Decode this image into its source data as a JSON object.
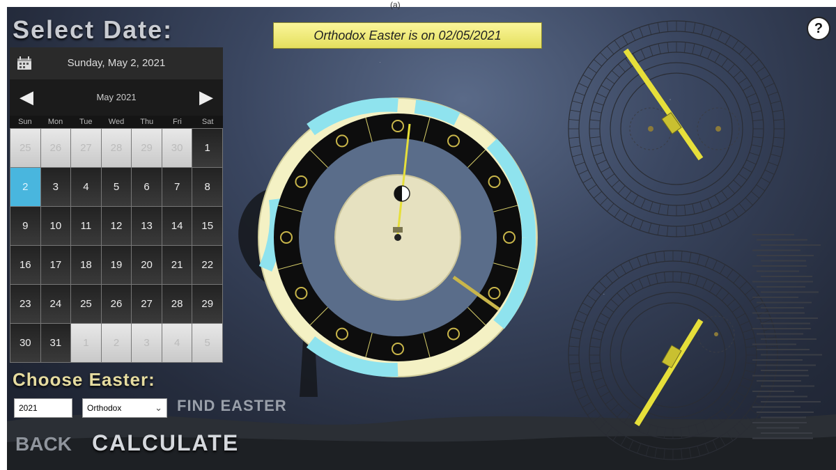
{
  "figure_label": "(a)",
  "header": {
    "title": "Select Date:",
    "help_glyph": "?"
  },
  "banner": {
    "text": "Orthodox Easter is on 02/05/2021"
  },
  "calendar": {
    "selected_date": "Sunday, May 2, 2021",
    "month_label": "May 2021",
    "prev_arrow": "◀",
    "next_arrow": "▶",
    "weekdays": [
      "Sun",
      "Mon",
      "Tue",
      "Wed",
      "Thu",
      "Fri",
      "Sat"
    ],
    "days": [
      {
        "d": "25",
        "other": true
      },
      {
        "d": "26",
        "other": true
      },
      {
        "d": "27",
        "other": true
      },
      {
        "d": "28",
        "other": true
      },
      {
        "d": "29",
        "other": true
      },
      {
        "d": "30",
        "other": true
      },
      {
        "d": "1",
        "other": false
      },
      {
        "d": "2",
        "other": false,
        "selected": true
      },
      {
        "d": "3",
        "other": false
      },
      {
        "d": "4",
        "other": false
      },
      {
        "d": "5",
        "other": false
      },
      {
        "d": "6",
        "other": false
      },
      {
        "d": "7",
        "other": false
      },
      {
        "d": "8",
        "other": false
      },
      {
        "d": "9",
        "other": false
      },
      {
        "d": "10",
        "other": false
      },
      {
        "d": "11",
        "other": false
      },
      {
        "d": "12",
        "other": false
      },
      {
        "d": "13",
        "other": false
      },
      {
        "d": "14",
        "other": false
      },
      {
        "d": "15",
        "other": false
      },
      {
        "d": "16",
        "other": false
      },
      {
        "d": "17",
        "other": false
      },
      {
        "d": "18",
        "other": false
      },
      {
        "d": "19",
        "other": false
      },
      {
        "d": "20",
        "other": false
      },
      {
        "d": "21",
        "other": false
      },
      {
        "d": "22",
        "other": false
      },
      {
        "d": "23",
        "other": false
      },
      {
        "d": "24",
        "other": false
      },
      {
        "d": "25",
        "other": false
      },
      {
        "d": "26",
        "other": false
      },
      {
        "d": "27",
        "other": false
      },
      {
        "d": "28",
        "other": false
      },
      {
        "d": "29",
        "other": false
      },
      {
        "d": "30",
        "other": false
      },
      {
        "d": "31",
        "other": false
      },
      {
        "d": "1",
        "other": true
      },
      {
        "d": "2",
        "other": true
      },
      {
        "d": "3",
        "other": true
      },
      {
        "d": "4",
        "other": true
      },
      {
        "d": "5",
        "other": true
      }
    ]
  },
  "easter": {
    "heading": "Choose Easter:",
    "year_value": "2021",
    "type_selected": "Orthodox",
    "find_label": "FIND EASTER"
  },
  "actions": {
    "back_label": "BACK",
    "calculate_label": "CALCULATE"
  },
  "colors": {
    "accent_blue": "#49b6de",
    "banner_yellow": "#f3ee7a",
    "ring_cream": "#f4f1c4",
    "ring_cyan": "#8fe3ee",
    "pointer_yellow": "#e6df3a"
  }
}
